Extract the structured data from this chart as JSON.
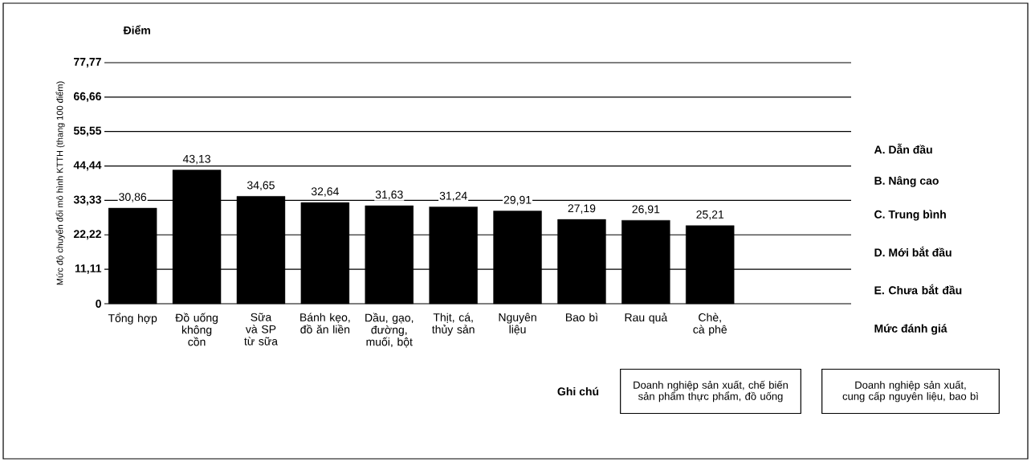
{
  "chart_data": {
    "type": "bar",
    "ylabel": "Mức độ chuyển đổi mô hình KTTH (thang 100 điểm)",
    "categories": [
      "Tổng hợp",
      "Đồ uống không cồn",
      "Sữa và SP từ sữa",
      "Bánh kẹo, đồ ăn liền",
      "Dầu, gạo, đường, muối, bột",
      "Thịt, cá, thủy sản",
      "Nguyên liệu",
      "Bao bì",
      "Rau quả",
      "Chè, cà phê"
    ],
    "values": [
      30.86,
      43.13,
      34.65,
      32.64,
      31.63,
      31.24,
      29.91,
      27.19,
      26.91,
      25.21
    ],
    "value_labels": [
      "30,86",
      "43,13",
      "34,65",
      "32,64",
      "31,63",
      "31,24",
      "29,91",
      "27,19",
      "26,91",
      "25,21"
    ],
    "color": "#000000",
    "ylim": [
      0,
      77.77
    ],
    "yticks": [
      0,
      {
        "value": 11.11,
        "label": "11,11"
      },
      {
        "value": 22.22,
        "label": "22,22"
      },
      {
        "value": 33.33,
        "label": "33,33"
      },
      {
        "value": 44.44,
        "label": "44,44"
      },
      {
        "value": 55.55,
        "label": "55,55"
      },
      {
        "value": 66.66,
        "label": "66,66"
      },
      {
        "value": 77.77,
        "label": "77,77"
      }
    ],
    "grid": "y",
    "annotations": [
      "Điểm",
      "A. Dẫn đầu",
      "B. Nâng cao",
      "C. Trung bình",
      "D. Mới bắt đầu",
      "E. Chưa bắt đầu",
      "Mức đánh giá",
      "Ghi chú",
      "Doanh nghiệp sản xuất, chế biến sản phẩm thực phẩm, đồ uống",
      "Doanh nghiệp sản xuất, cung cấp nguyên liệu, bao bì"
    ]
  }
}
